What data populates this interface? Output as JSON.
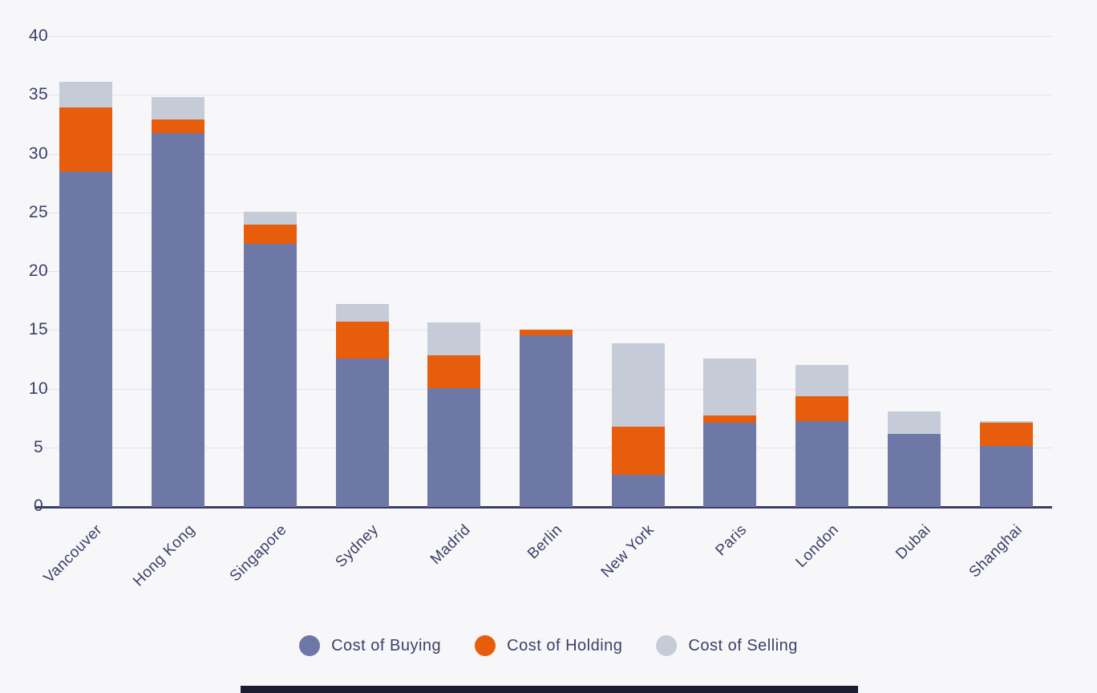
{
  "page": {
    "background": "#f7f7f9"
  },
  "chart_data": {
    "type": "bar",
    "subtype": "stacked",
    "title": "",
    "xlabel": "",
    "ylabel": "",
    "categories": [
      "Vancouver",
      "Hong Kong",
      "Singapore",
      "Sydney",
      "Madrid",
      "Berlin",
      "New York",
      "Paris",
      "London",
      "Dubai",
      "Shanghai"
    ],
    "series": [
      {
        "name": "Cost of Buying",
        "color": "#6e78a7",
        "values": [
          28.5,
          31.8,
          22.4,
          12.6,
          10.1,
          14.6,
          2.7,
          7.2,
          7.3,
          6.2,
          5.2
        ]
      },
      {
        "name": "Cost of Holding",
        "color": "#e85d0c",
        "values": [
          5.5,
          1.2,
          1.6,
          3.2,
          2.8,
          0.5,
          4.1,
          0.6,
          2.1,
          0,
          2.0
        ]
      },
      {
        "name": "Cost of Selling",
        "color": "#c6cbd8",
        "values": [
          2.2,
          1.9,
          1.1,
          1.5,
          2.8,
          0,
          7.1,
          4.8,
          2.7,
          1.9,
          0.1
        ]
      }
    ],
    "ylim": [
      0,
      40
    ],
    "ytick_step": 5,
    "yticks": [
      "0",
      "5",
      "10",
      "15",
      "20",
      "25",
      "30",
      "35",
      "40"
    ],
    "grid": true,
    "legend_position": "bottom",
    "axis_color": "#3b3f63",
    "grid_color": "#e1e1ed",
    "label_color": "#3d4066"
  }
}
